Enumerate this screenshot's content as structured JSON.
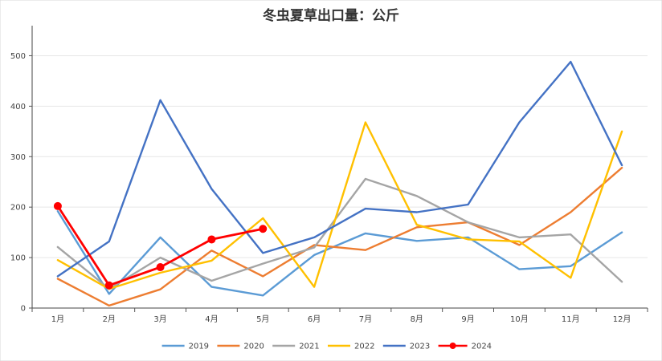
{
  "chart_data": {
    "type": "line",
    "title": "冬虫夏草出口量：公斤",
    "xlabel": "",
    "ylabel": "",
    "categories": [
      "1月",
      "2月",
      "3月",
      "4月",
      "5月",
      "6月",
      "7月",
      "8月",
      "9月",
      "10月",
      "11月",
      "12月"
    ],
    "ylim": [
      0,
      550
    ],
    "yticks": [
      0,
      100,
      200,
      300,
      400,
      500
    ],
    "grid": true,
    "legend_position": "bottom",
    "series": [
      {
        "name": "2019",
        "color": "#5B9BD5",
        "markers": false,
        "values": [
          192,
          28,
          140,
          42,
          25,
          105,
          148,
          133,
          140,
          77,
          83,
          150
        ]
      },
      {
        "name": "2020",
        "color": "#ED7D31",
        "markers": false,
        "values": [
          58,
          5,
          37,
          114,
          63,
          125,
          115,
          160,
          170,
          125,
          190,
          278
        ]
      },
      {
        "name": "2021",
        "color": "#A5A5A5",
        "markers": false,
        "values": [
          121,
          38,
          100,
          54,
          88,
          120,
          256,
          222,
          170,
          140,
          146,
          52
        ]
      },
      {
        "name": "2022",
        "color": "#FFC000",
        "markers": false,
        "values": [
          95,
          38,
          70,
          94,
          178,
          42,
          368,
          165,
          136,
          132,
          60,
          350
        ]
      },
      {
        "name": "2023",
        "color": "#4472C4",
        "markers": false,
        "values": [
          63,
          132,
          412,
          236,
          109,
          140,
          197,
          190,
          205,
          368,
          488,
          283
        ]
      },
      {
        "name": "2024",
        "color": "#FF0000",
        "markers": true,
        "values": [
          202,
          45,
          81,
          136,
          157,
          null,
          null,
          null,
          null,
          null,
          null,
          null
        ]
      }
    ]
  }
}
